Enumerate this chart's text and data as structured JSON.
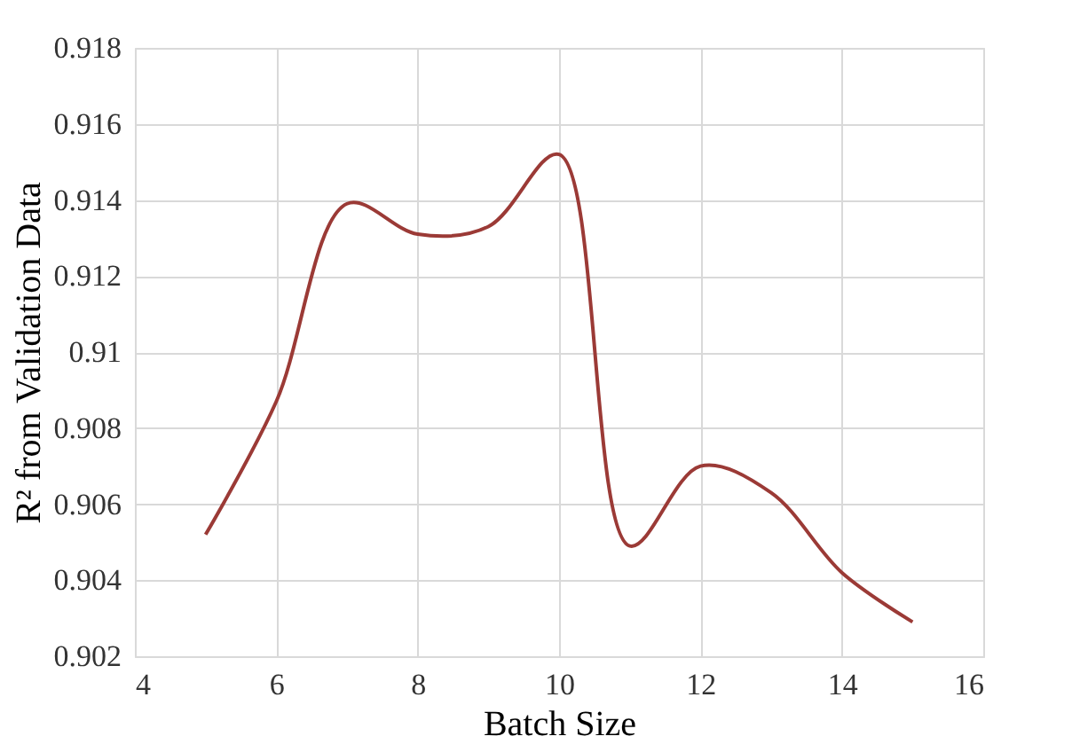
{
  "chart_data": {
    "type": "line",
    "xlabel": "Batch Size",
    "ylabel": "R² from Validation Data",
    "x": [
      5,
      6,
      7,
      8,
      9,
      10,
      11,
      12,
      13,
      14,
      15
    ],
    "series": [
      {
        "color": "#9b3a36",
        "values": [
          0.9052,
          0.9087,
          0.9139,
          0.9131,
          0.9133,
          0.9152,
          0.9049,
          0.907,
          0.9063,
          0.9042,
          0.9029
        ]
      }
    ],
    "xlim": [
      4,
      16
    ],
    "xticks": [
      4,
      6,
      8,
      10,
      12,
      14,
      16
    ],
    "ylim": [
      0.902,
      0.918
    ],
    "yticks": [
      0.902,
      0.904,
      0.906,
      0.908,
      0.91,
      0.912,
      0.914,
      0.916,
      0.918
    ],
    "grid": true,
    "marker": "none",
    "line_style": "solid"
  }
}
